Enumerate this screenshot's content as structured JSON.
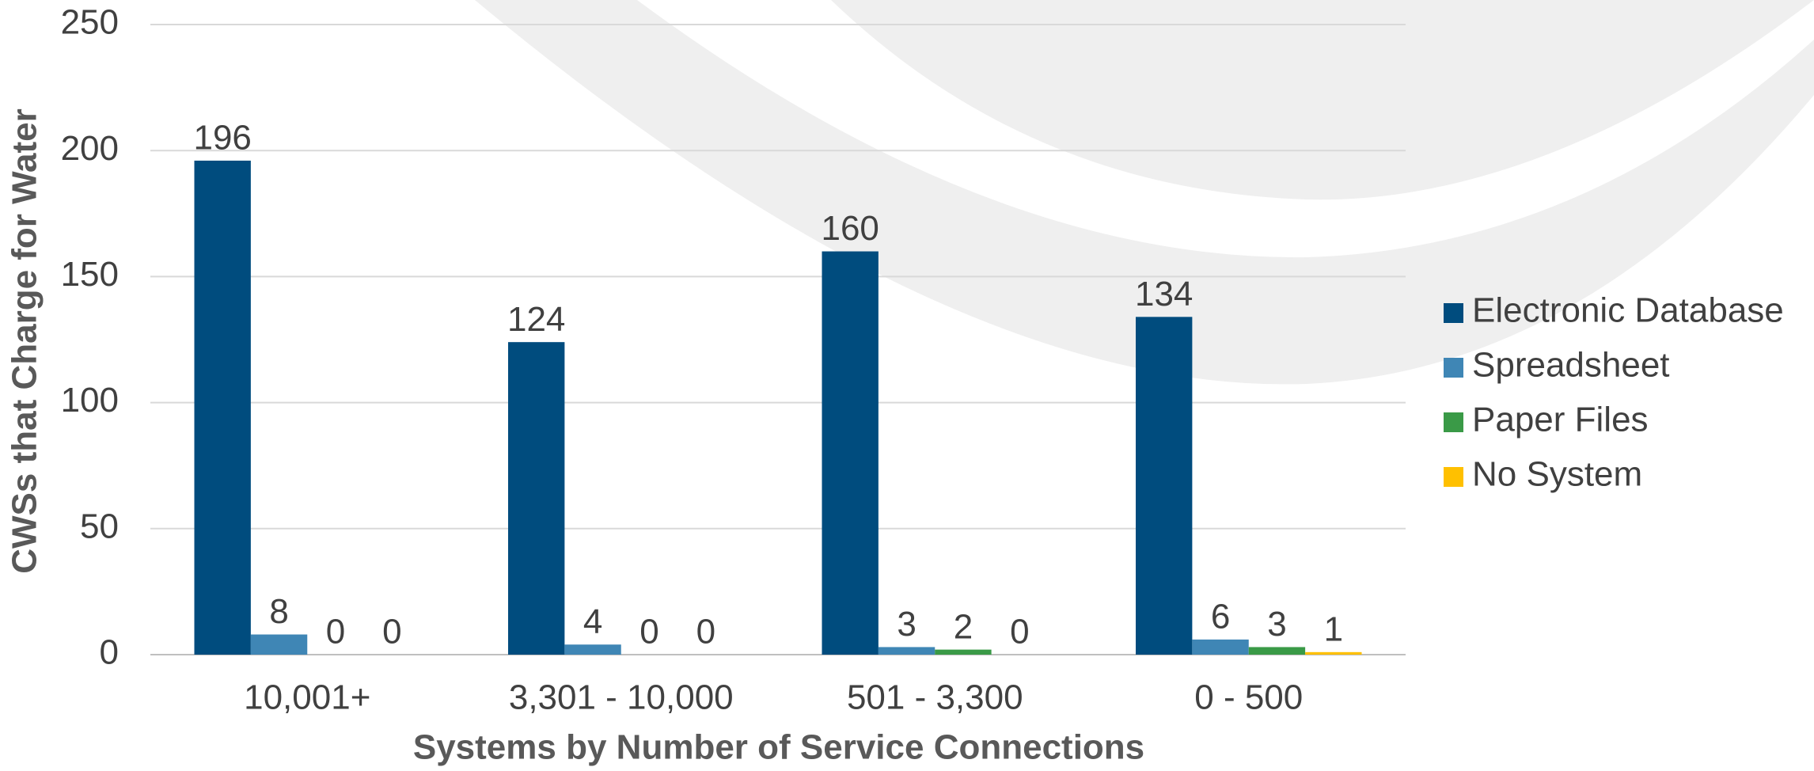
{
  "chart_data": {
    "type": "bar",
    "x_label": "Systems by Number of Service Connections",
    "y_label": "CWSs that Charge for Water",
    "categories": [
      "10,001+",
      "3,301 - 10,000",
      "501 - 3,300",
      "0 - 500"
    ],
    "series": [
      {
        "name": "Electronic Database",
        "color": "#004c7e",
        "values": [
          196,
          124,
          160,
          134
        ]
      },
      {
        "name": "Spreadsheet",
        "color": "#3f86b5",
        "values": [
          8,
          4,
          3,
          6
        ]
      },
      {
        "name": "Paper Files",
        "color": "#3a9a47",
        "values": [
          0,
          0,
          2,
          3
        ]
      },
      {
        "name": "No System",
        "color": "#ffc000",
        "values": [
          0,
          0,
          0,
          1
        ]
      }
    ],
    "ylim": [
      0,
      250
    ],
    "yticks": [
      0,
      50,
      100,
      150,
      200,
      250
    ],
    "grid": true,
    "legend": "right"
  }
}
